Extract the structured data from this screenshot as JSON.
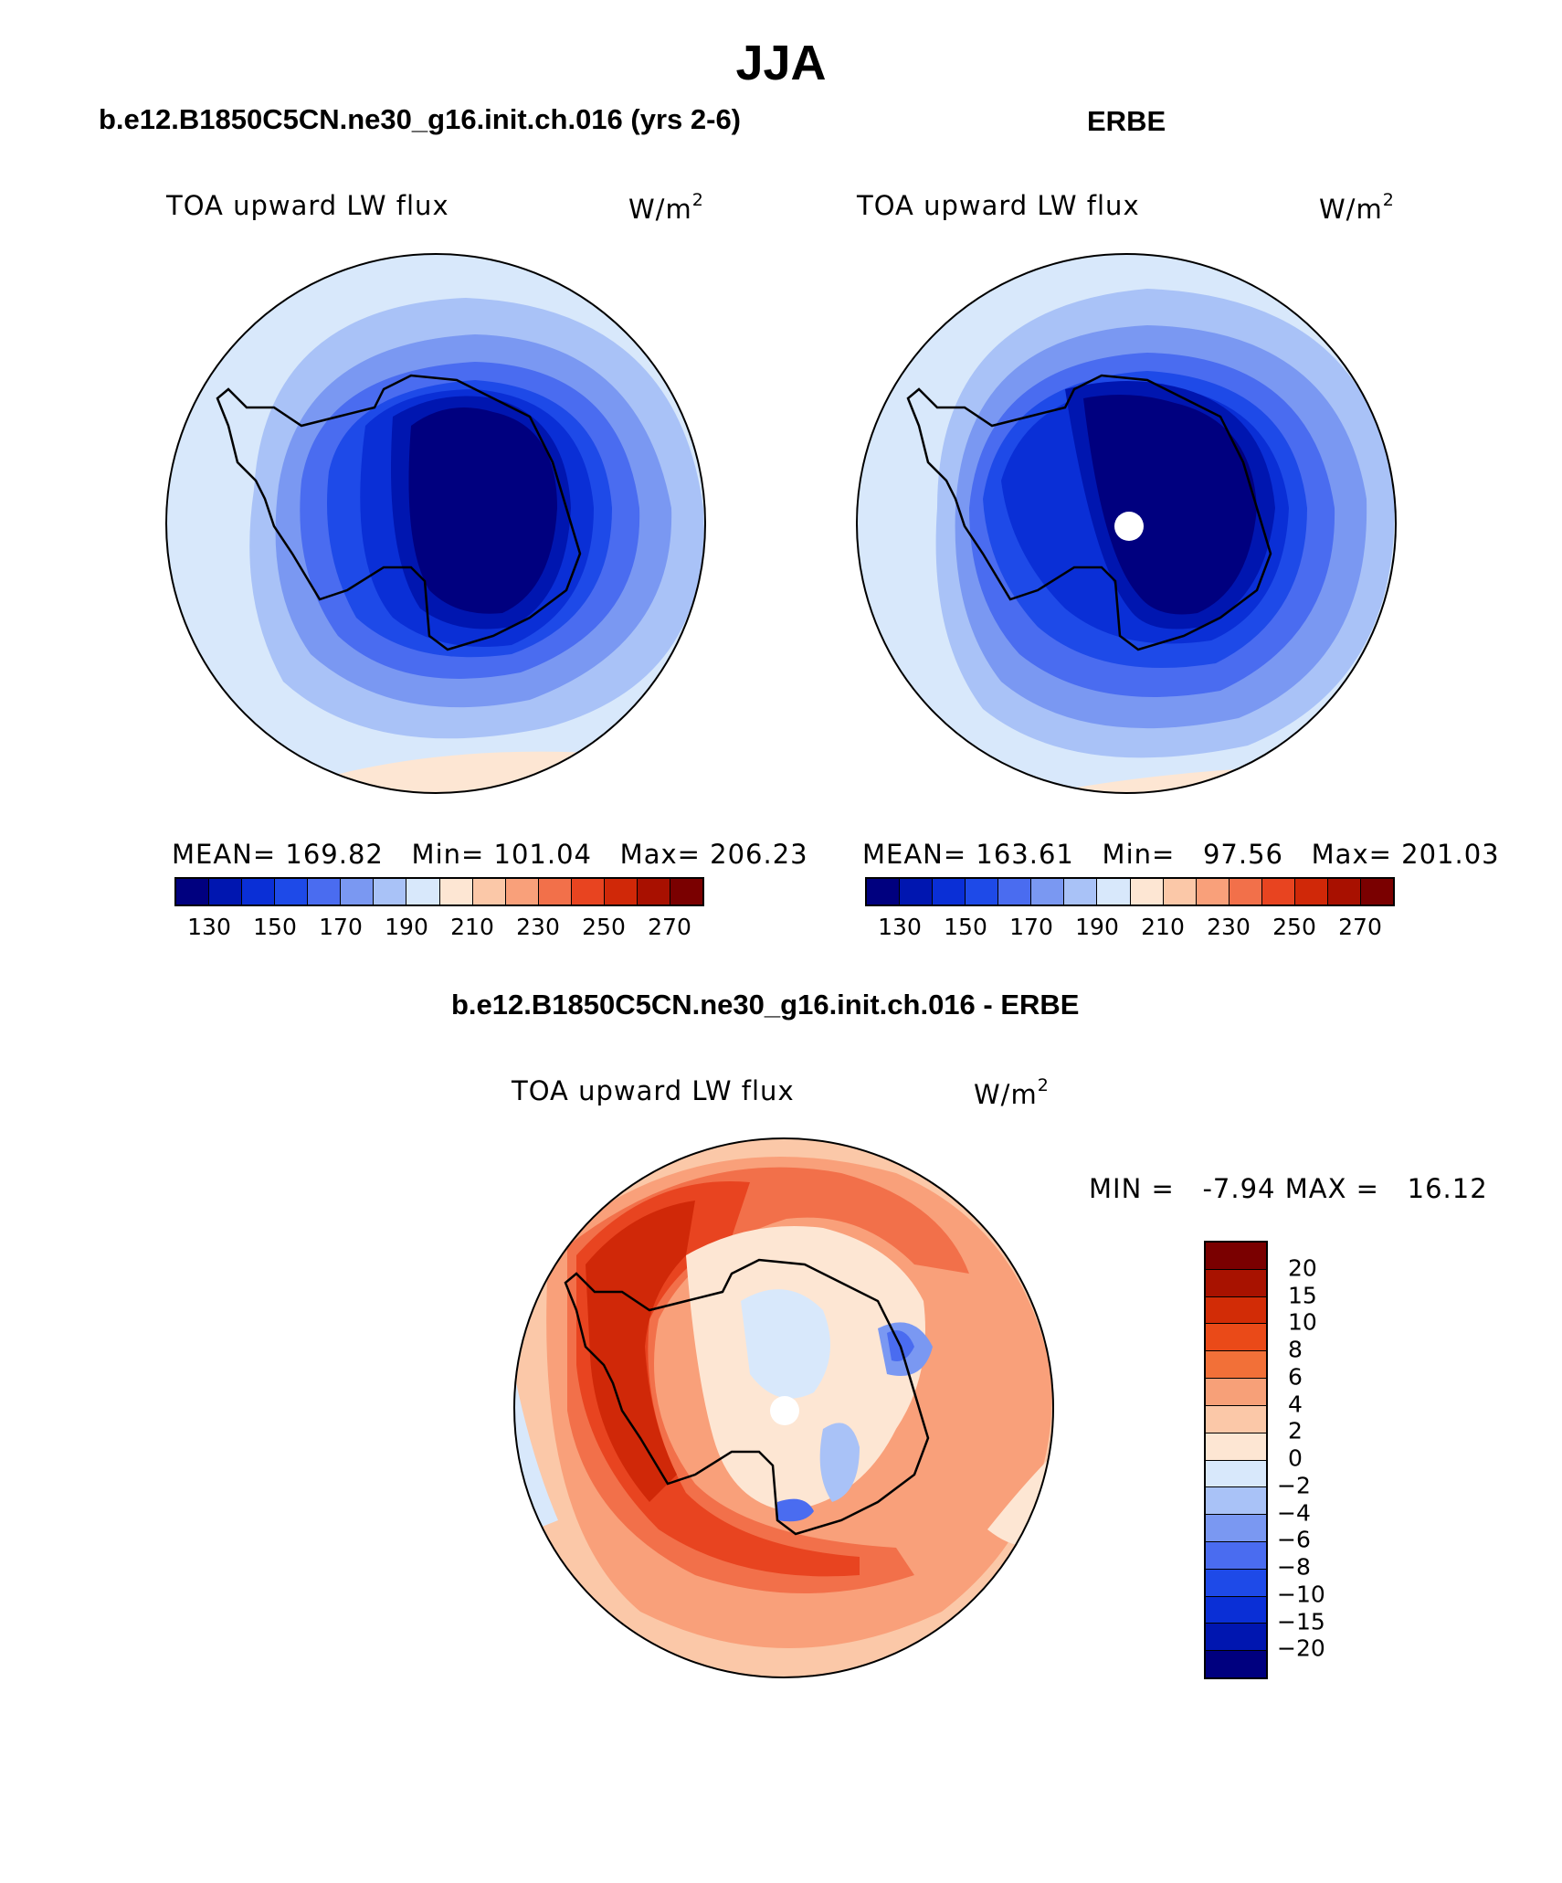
{
  "title": "JJA",
  "panels": {
    "model": {
      "subtitle": "b.e12.B1850C5CN.ne30_g16.init.ch.016 (yrs 2-6)",
      "variable": "TOA upward LW flux",
      "units_base": "W/m",
      "units_exp": "2",
      "stats": {
        "mean_label": "MEAN=",
        "mean": "169.82",
        "min_label": "Min=",
        "min": "101.04",
        "max_label": "Max=",
        "max": "206.23"
      }
    },
    "obs": {
      "subtitle": "ERBE",
      "variable": "TOA upward LW flux",
      "units_base": "W/m",
      "units_exp": "2",
      "stats": {
        "mean_label": "MEAN=",
        "mean": "163.61",
        "min_label": "Min=",
        "min": "97.56",
        "max_label": "Max=",
        "max": "201.03"
      }
    },
    "diff": {
      "subtitle": "b.e12.B1850C5CN.ne30_g16.init.ch.016 - ERBE",
      "variable": "TOA upward LW flux",
      "units_base": "W/m",
      "units_exp": "2",
      "stats": {
        "min_label": "MIN =",
        "min": "-7.94",
        "max_label": "MAX =",
        "max": "16.12"
      }
    }
  },
  "colorbar_abs": {
    "colors": [
      "#00007f",
      "#0016b0",
      "#0a2fd6",
      "#1e4ae8",
      "#4a6cf0",
      "#7a98f2",
      "#a9c2f7",
      "#d8e8fb",
      "#fde6d3",
      "#fbc8a8",
      "#f9a07a",
      "#f2704a",
      "#e84420",
      "#d02808",
      "#a81000",
      "#7a0000"
    ],
    "tick_labels": [
      "130",
      "150",
      "170",
      "190",
      "210",
      "230",
      "250",
      "270"
    ]
  },
  "colorbar_diff": {
    "colors": [
      "#7a0000",
      "#a81200",
      "#d22c06",
      "#ea4a18",
      "#f27038",
      "#f7a078",
      "#fbc8a8",
      "#fde6d3",
      "#d8e8fb",
      "#a9c2f7",
      "#7a98f2",
      "#4a6cf0",
      "#1e4ae8",
      "#0a2fd6",
      "#0016b0",
      "#00007f"
    ],
    "tick_labels": [
      "20",
      "15",
      "10",
      "8",
      "6",
      "4",
      "2",
      "0",
      "−2",
      "−4",
      "−6",
      "−8",
      "−10",
      "−15",
      "−20"
    ]
  },
  "legend_values_abs": [
    130,
    150,
    170,
    190,
    210,
    230,
    250,
    270
  ],
  "legend_values_diff": [
    20,
    15,
    10,
    8,
    6,
    4,
    2,
    0,
    -2,
    -4,
    -6,
    -8,
    -10,
    -15,
    -20
  ]
}
